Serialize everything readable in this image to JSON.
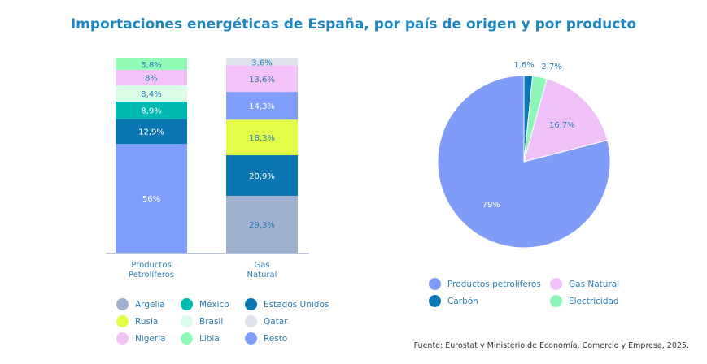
{
  "title": "Importaciones energéticas de España, por país de origen y por producto",
  "chart_data": [
    {
      "type": "bar",
      "stacked": true,
      "categories": [
        "Productos Petrolíferos",
        "Gas Natural"
      ],
      "ylim": [
        0,
        100
      ],
      "grid": false,
      "legend": "bottom",
      "series": [
        {
          "name": "Resto",
          "color": "#7f9dfb",
          "values": [
            56,
            14.3
          ],
          "labels": [
            "56%",
            "14,3%"
          ]
        },
        {
          "name": "Estados Unidos",
          "color": "#0a76b1",
          "values": [
            12.9,
            20.9
          ],
          "labels": [
            "12,9%",
            "20,9%"
          ]
        },
        {
          "name": "México",
          "color": "#00b9b1",
          "values": [
            8.9,
            0
          ],
          "labels": [
            "8,9%",
            ""
          ]
        },
        {
          "name": "Brasil",
          "color": "#dcfbe8",
          "values": [
            8.4,
            0
          ],
          "labels": [
            "8,4%",
            ""
          ]
        },
        {
          "name": "Nigeria",
          "color": "#f2c2f9",
          "values": [
            8,
            13.6
          ],
          "labels": [
            "8%",
            "13,6%"
          ]
        },
        {
          "name": "Libia",
          "color": "#8ffbb6",
          "values": [
            5.8,
            0
          ],
          "labels": [
            "5,8%",
            ""
          ]
        },
        {
          "name": "Argelia",
          "color": "#9fb1cd",
          "values": [
            0,
            29.3
          ],
          "labels": [
            "",
            "29,3%"
          ]
        },
        {
          "name": "Rusia",
          "color": "#e3fc48",
          "values": [
            0,
            18.3
          ],
          "labels": [
            "",
            "18,3%"
          ]
        },
        {
          "name": "Qatar",
          "color": "#dde2eb",
          "values": [
            0,
            3.6
          ],
          "labels": [
            "",
            "3,6%"
          ]
        }
      ],
      "stack_order": [
        [
          "Resto",
          "Estados Unidos",
          "México",
          "Brasil",
          "Nigeria",
          "Libia"
        ],
        [
          "Argelia",
          "Estados Unidos",
          "Rusia",
          "Resto",
          "Nigeria",
          "Qatar"
        ]
      ],
      "legend_items": [
        "Argelia",
        "México",
        "Estados Unidos",
        "Rusia",
        "Brasil",
        "Qatar",
        "Nigeria",
        "Libia",
        "Resto"
      ]
    },
    {
      "type": "pie",
      "legend": "bottom",
      "slices": [
        {
          "name": "Carbón",
          "value": 1.6,
          "label": "1,6%",
          "color": "#0a78b5"
        },
        {
          "name": "Electricidad",
          "value": 2.7,
          "label": "2,7%",
          "color": "#8ef5b8"
        },
        {
          "name": "Gas Natural",
          "value": 16.7,
          "label": "16,7%",
          "color": "#f0c0f8"
        },
        {
          "name": "Productos petrolíferos",
          "value": 79,
          "label": "79%",
          "color": "#7f9df8"
        }
      ],
      "legend_items": [
        "Productos petrolíferos",
        "Gas Natural",
        "Carbón",
        "Electricidad"
      ]
    }
  ],
  "source": "Fuente: Eurostat y  Ministerio de Economía, Comercio y Empresa, 2025."
}
